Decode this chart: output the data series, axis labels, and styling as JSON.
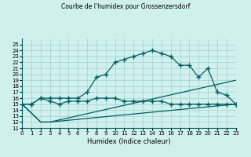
{
  "title": "Courbe de l'humidex pour Grossenzersdorf",
  "xlabel": "Humidex (Indice chaleur)",
  "ylabel": "",
  "bg_color": "#d0f0ee",
  "line_color": "#006060",
  "xlim": [
    0,
    23
  ],
  "ylim": [
    11,
    26
  ],
  "xticks": [
    0,
    1,
    2,
    3,
    4,
    5,
    6,
    7,
    8,
    9,
    10,
    11,
    12,
    13,
    14,
    15,
    16,
    17,
    18,
    19,
    20,
    21,
    22,
    23
  ],
  "yticks": [
    11,
    12,
    13,
    14,
    15,
    16,
    17,
    18,
    19,
    20,
    21,
    22,
    23,
    24,
    25
  ],
  "series": [
    {
      "x": [
        0,
        1,
        2,
        3,
        4,
        5,
        6,
        7,
        8,
        9,
        10,
        11,
        12,
        13,
        14,
        15,
        16,
        17,
        18,
        19,
        20,
        21,
        22,
        23
      ],
      "y": [
        15,
        15,
        16,
        16,
        16,
        16,
        16,
        17,
        19.5,
        20,
        22,
        22.5,
        23,
        23.5,
        24,
        23.5,
        23,
        21.5,
        21.5,
        19.5,
        21,
        17,
        16.5,
        15
      ]
    },
    {
      "x": [
        0,
        1,
        2,
        3,
        4,
        5,
        6,
        7,
        8,
        9,
        10,
        11,
        12,
        13,
        14,
        15,
        16,
        17,
        18,
        19,
        20,
        21,
        22,
        23
      ],
      "y": [
        15,
        15,
        16,
        15.5,
        15,
        15.5,
        15.5,
        15.5,
        16,
        16,
        16,
        15.5,
        15.5,
        15.5,
        15.5,
        15.5,
        15,
        15,
        15,
        15,
        15,
        15,
        15,
        15
      ]
    },
    {
      "x": [
        0,
        2,
        3,
        23
      ],
      "y": [
        15,
        12,
        12,
        15
      ]
    },
    {
      "x": [
        0,
        2,
        3,
        23
      ],
      "y": [
        15,
        12,
        12,
        19
      ]
    }
  ]
}
